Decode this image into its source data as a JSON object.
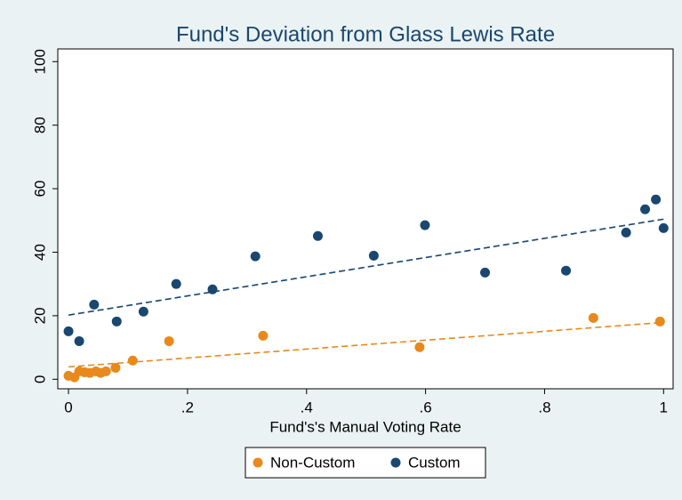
{
  "chart_data": {
    "type": "scatter",
    "title": "Fund's Deviation from Glass Lewis Rate",
    "xlabel": "Fund's's Manual Voting Rate",
    "xlim": [
      -0.018,
      1.016
    ],
    "ylim": [
      -3,
      104
    ],
    "xticks": [
      0,
      {
        "value": 0.2,
        "label": ".2"
      },
      {
        "value": 0.4,
        "label": ".4"
      },
      {
        "value": 0.6,
        "label": ".6"
      },
      {
        "value": 0.8,
        "label": ".8"
      },
      1
    ],
    "yticks": [
      0,
      20,
      40,
      60,
      80,
      100
    ],
    "grid": false,
    "legend": "bottom",
    "series": [
      {
        "name": "Non-Custom",
        "color": "#e8891c",
        "x": [
          0,
          0.01,
          0.018,
          0.027,
          0.036,
          0.046,
          0.054,
          0.063,
          0.079,
          0.108,
          0.169,
          0.327,
          0.59,
          0.882,
          0.994
        ],
        "values": [
          1.1,
          0.6,
          2.5,
          2.2,
          2.0,
          2.5,
          2.0,
          2.5,
          3.6,
          5.9,
          12,
          13.7,
          10.1,
          19.3,
          18.2
        ]
      },
      {
        "name": "Custom",
        "color": "#1a476f",
        "x": [
          0,
          0.018,
          0.043,
          0.081,
          0.126,
          0.181,
          0.242,
          0.314,
          0.419,
          0.513,
          0.599,
          0.7,
          0.836,
          0.937,
          0.969,
          0.987,
          1
        ],
        "values": [
          15.1,
          12,
          23.5,
          18.2,
          21.3,
          30,
          28.3,
          38.7,
          45.1,
          38.9,
          48.5,
          33.6,
          34.2,
          46.2,
          53.5,
          56.6,
          47.6
        ]
      }
    ],
    "fit_lines": [
      {
        "color": "#e8891c",
        "x": [
          0,
          1
        ],
        "values": [
          3.9,
          17.9
        ]
      },
      {
        "color": "#1a476f",
        "x": [
          0,
          1
        ],
        "values": [
          20.2,
          50.4
        ]
      }
    ]
  }
}
